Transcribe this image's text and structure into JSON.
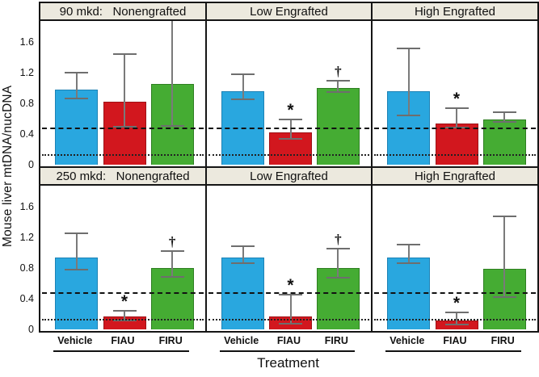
{
  "figure": {
    "ylabel": "Mouse liver mtDNA/nucDNA",
    "xlabel": "Treatment"
  },
  "chart_data": {
    "type": "bar",
    "categories": [
      "Vehicle",
      "FIAU",
      "FIRU"
    ],
    "ylim": [
      0,
      1.9
    ],
    "yticks": [
      "0",
      "0.4",
      "0.8",
      "1.2",
      "1.6"
    ],
    "grid": "off",
    "legend": "none",
    "series_colors": {
      "Vehicle": "#29a7df",
      "FIAU": "#d2171e",
      "FIRU": "#45ac33"
    },
    "bar_border_colors": {
      "Vehicle": "#1c82b5",
      "FIAU": "#9e1116",
      "FIRU": "#2e7f21"
    },
    "error_bar_color": "#7a7a7a",
    "header_bg": "#ece9de",
    "frame_color": "#151515",
    "reference_lines": [
      {
        "style": "dashed",
        "value": 0.46
      },
      {
        "style": "dotted",
        "value": 0.12
      }
    ],
    "rows": [
      {
        "dose": "90 mkd",
        "panels": [
          {
            "title": "90 mkd:   Nonengrafted",
            "bars": [
              {
                "category": "Vehicle",
                "value": 0.98,
                "err_low": 0.86,
                "err_high": 1.19,
                "annotation": ""
              },
              {
                "category": "FIAU",
                "value": 0.82,
                "err_low": 0.49,
                "err_high": 1.44,
                "annotation": ""
              },
              {
                "category": "FIRU",
                "value": 1.06,
                "err_low": 0.5,
                "err_high": 1.88,
                "annotation": ""
              }
            ]
          },
          {
            "title": "Low Engrafted",
            "bars": [
              {
                "category": "Vehicle",
                "value": 0.96,
                "err_low": 0.84,
                "err_high": 1.17,
                "annotation": ""
              },
              {
                "category": "FIAU",
                "value": 0.42,
                "err_low": 0.33,
                "err_high": 0.58,
                "annotation": "*"
              },
              {
                "category": "FIRU",
                "value": 1.0,
                "err_low": 0.94,
                "err_high": 1.09,
                "annotation": "†"
              }
            ]
          },
          {
            "title": "High Engrafted",
            "bars": [
              {
                "category": "Vehicle",
                "value": 0.96,
                "err_low": 0.63,
                "err_high": 1.51,
                "annotation": ""
              },
              {
                "category": "FIAU",
                "value": 0.54,
                "err_low": 0.47,
                "err_high": 0.73,
                "annotation": "*"
              },
              {
                "category": "FIRU",
                "value": 0.59,
                "err_low": 0.55,
                "err_high": 0.68,
                "annotation": ""
              }
            ]
          }
        ]
      },
      {
        "dose": "250 mkd",
        "panels": [
          {
            "title": "250 mkd:   Nonengrafted",
            "bars": [
              {
                "category": "Vehicle",
                "value": 0.94,
                "err_low": 0.77,
                "err_high": 1.25,
                "annotation": ""
              },
              {
                "category": "FIAU",
                "value": 0.17,
                "err_low": 0.11,
                "err_high": 0.23,
                "annotation": "*"
              },
              {
                "category": "FIRU",
                "value": 0.8,
                "err_low": 0.68,
                "err_high": 1.01,
                "annotation": "†"
              }
            ]
          },
          {
            "title": "Low Engrafted",
            "bars": [
              {
                "category": "Vehicle",
                "value": 0.94,
                "err_low": 0.86,
                "err_high": 1.08,
                "annotation": ""
              },
              {
                "category": "FIAU",
                "value": 0.17,
                "err_low": 0.06,
                "err_high": 0.44,
                "annotation": "*"
              },
              {
                "category": "FIRU",
                "value": 0.8,
                "err_low": 0.67,
                "err_high": 1.05,
                "annotation": "†"
              }
            ]
          },
          {
            "title": "High Engrafted",
            "bars": [
              {
                "category": "Vehicle",
                "value": 0.94,
                "err_low": 0.86,
                "err_high": 1.1,
                "annotation": ""
              },
              {
                "category": "FIAU",
                "value": 0.12,
                "err_low": 0.05,
                "err_high": 0.21,
                "annotation": "*"
              },
              {
                "category": "FIRU",
                "value": 0.79,
                "err_low": 0.41,
                "err_high": 1.47,
                "annotation": ""
              }
            ]
          }
        ]
      }
    ]
  }
}
